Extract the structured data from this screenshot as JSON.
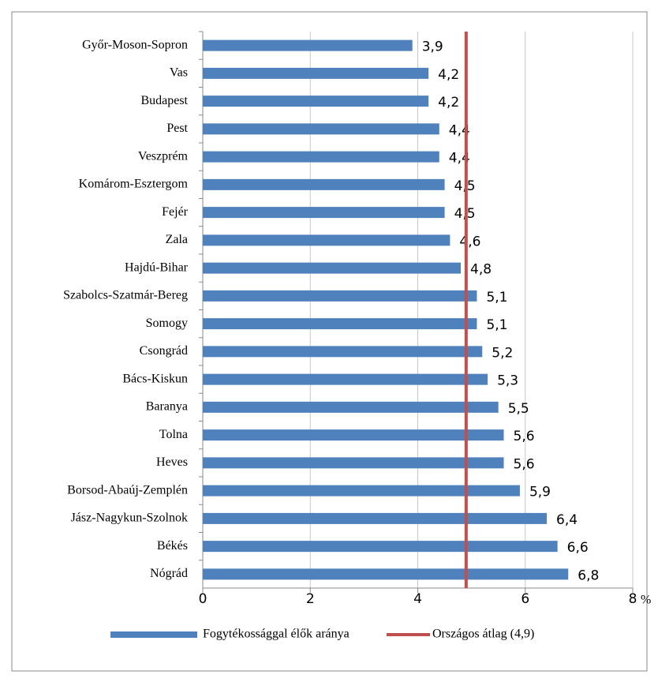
{
  "chart_data": {
    "type": "bar",
    "orientation": "horizontal",
    "categories": [
      "Győr-Moson-Sopron",
      "Vas",
      "Budapest",
      "Pest",
      "Veszprém",
      "Komárom-Esztergom",
      "Fejér",
      "Zala",
      "Hajdú-Bihar",
      "Szabolcs-Szatmár-Bereg",
      "Somogy",
      "Csongrád",
      "Bács-Kiskun",
      "Baranya",
      "Tolna",
      "Heves",
      "Borsod-Abaúj-Zemplén",
      "Jász-Nagykun-Szolnok",
      "Békés",
      "Nógrád"
    ],
    "series": [
      {
        "name": "Fogytékossággal élők aránya",
        "color": "#4f81bd",
        "values": [
          3.9,
          4.2,
          4.2,
          4.4,
          4.4,
          4.5,
          4.5,
          4.6,
          4.8,
          5.1,
          5.1,
          5.2,
          5.3,
          5.5,
          5.6,
          5.6,
          5.9,
          6.4,
          6.6,
          6.8
        ],
        "value_labels": [
          "3,9",
          "4,2",
          "4,2",
          "4,4",
          "4,4",
          "4,5",
          "4,5",
          "4,6",
          "4,8",
          "5,1",
          "5,1",
          "5,2",
          "5,3",
          "5,5",
          "5,6",
          "5,6",
          "5,9",
          "6,4",
          "6,6",
          "6,8"
        ]
      }
    ],
    "reference_line": {
      "name": "Országos átlag (4,9)",
      "value": 4.9,
      "color": "#c0504d"
    },
    "xlim": [
      0,
      8
    ],
    "xticks": [
      0,
      2,
      4,
      6,
      8
    ],
    "x_unit": "%",
    "grid": true,
    "legend": "bottom"
  }
}
